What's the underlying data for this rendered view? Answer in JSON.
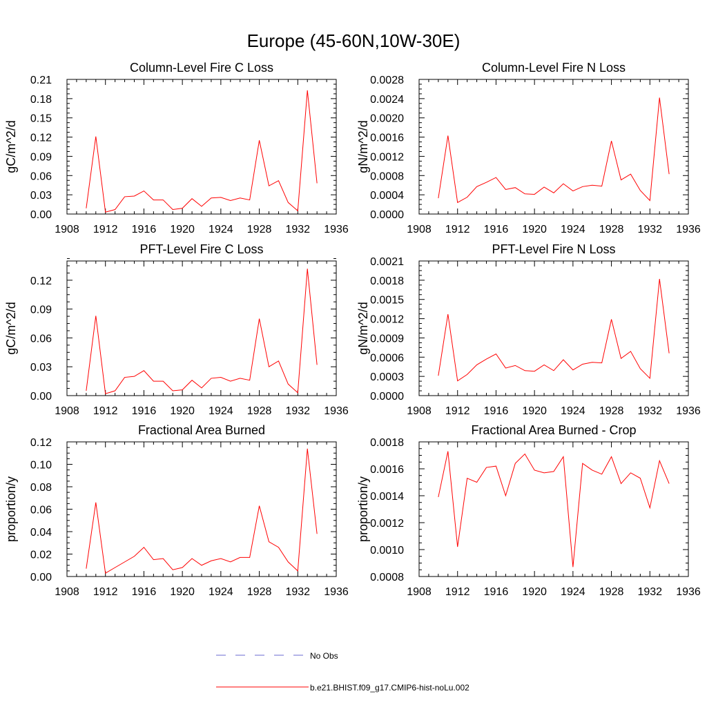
{
  "figure": {
    "title": "Europe (45-60N,10W-30E)"
  },
  "legend": {
    "obs_label": "No Obs",
    "model_label": "b.e21.BHIST.f09_g17.CMIP6-hist-noLu.002",
    "obs_color": "#6a6ad0",
    "model_color": "#ff0000"
  },
  "chart_data": [
    {
      "type": "line",
      "title": "Column-Level Fire C Loss",
      "ylabel": "gC/m^2/d",
      "xlim": [
        1908,
        1936
      ],
      "ylim": [
        0,
        0.21
      ],
      "xticks": [
        "1908",
        "1912",
        "1916",
        "1920",
        "1924",
        "1928",
        "1932",
        "1936"
      ],
      "yticks": [
        "0.00",
        "0.03",
        "0.06",
        "0.09",
        "0.12",
        "0.15",
        "0.18",
        "0.21"
      ],
      "x": [
        1910,
        1911,
        1912,
        1913,
        1914,
        1915,
        1916,
        1917,
        1918,
        1919,
        1920,
        1921,
        1922,
        1923,
        1924,
        1925,
        1926,
        1927,
        1928,
        1929,
        1930,
        1931,
        1932,
        1933,
        1934
      ],
      "series": [
        {
          "values": [
            0.009,
            0.121,
            0.003,
            0.007,
            0.027,
            0.028,
            0.036,
            0.022,
            0.022,
            0.007,
            0.009,
            0.024,
            0.012,
            0.025,
            0.026,
            0.021,
            0.025,
            0.022,
            0.115,
            0.044,
            0.052,
            0.018,
            0.005,
            0.193,
            0.048
          ]
        }
      ]
    },
    {
      "type": "line",
      "title": "Column-Level Fire N Loss",
      "ylabel": "gN/m^2/d",
      "xlim": [
        1908,
        1936
      ],
      "ylim": [
        0,
        0.0028
      ],
      "xticks": [
        "1908",
        "1912",
        "1916",
        "1920",
        "1924",
        "1928",
        "1932",
        "1936"
      ],
      "yticks": [
        "0.0000",
        "0.0004",
        "0.0008",
        "0.0012",
        "0.0016",
        "0.0020",
        "0.0024",
        "0.0028"
      ],
      "x": [
        1910,
        1911,
        1912,
        1913,
        1914,
        1915,
        1916,
        1917,
        1918,
        1919,
        1920,
        1921,
        1922,
        1923,
        1924,
        1925,
        1926,
        1927,
        1928,
        1929,
        1930,
        1931,
        1932,
        1933,
        1934
      ],
      "series": [
        {
          "values": [
            0.00033,
            0.00163,
            0.00024,
            0.00035,
            0.00057,
            0.00066,
            0.00076,
            0.00051,
            0.00055,
            0.00042,
            0.00041,
            0.00056,
            0.00044,
            0.00063,
            0.00048,
            0.00057,
            0.0006,
            0.00058,
            0.00152,
            0.00071,
            0.00083,
            0.00049,
            0.00028,
            0.00242,
            0.00083
          ]
        }
      ]
    },
    {
      "type": "line",
      "title": "PFT-Level Fire C Loss",
      "ylabel": "gC/m^2/d",
      "xlim": [
        1908,
        1936
      ],
      "ylim": [
        0,
        0.14
      ],
      "xticks": [
        "1908",
        "1912",
        "1916",
        "1920",
        "1924",
        "1928",
        "1932",
        "1936"
      ],
      "yticks": [
        "0.00",
        "0.03",
        "0.06",
        "0.09",
        "0.12"
      ],
      "x": [
        1910,
        1911,
        1912,
        1913,
        1914,
        1915,
        1916,
        1917,
        1918,
        1919,
        1920,
        1921,
        1922,
        1923,
        1924,
        1925,
        1926,
        1927,
        1928,
        1929,
        1930,
        1931,
        1932,
        1933,
        1934
      ],
      "series": [
        {
          "values": [
            0.005,
            0.083,
            0.002,
            0.005,
            0.019,
            0.02,
            0.026,
            0.015,
            0.015,
            0.005,
            0.006,
            0.016,
            0.008,
            0.018,
            0.019,
            0.015,
            0.018,
            0.016,
            0.08,
            0.03,
            0.036,
            0.012,
            0.003,
            0.132,
            0.032
          ]
        }
      ]
    },
    {
      "type": "line",
      "title": "PFT-Level Fire N Loss",
      "ylabel": "gN/m^2/d",
      "xlim": [
        1908,
        1936
      ],
      "ylim": [
        0,
        0.0021
      ],
      "xticks": [
        "1908",
        "1912",
        "1916",
        "1920",
        "1924",
        "1928",
        "1932",
        "1936"
      ],
      "yticks": [
        "0.0000",
        "0.0003",
        "0.0006",
        "0.0009",
        "0.0012",
        "0.0015",
        "0.0018",
        "0.0021"
      ],
      "x": [
        1910,
        1911,
        1912,
        1913,
        1914,
        1915,
        1916,
        1917,
        1918,
        1919,
        1920,
        1921,
        1922,
        1923,
        1924,
        1925,
        1926,
        1927,
        1928,
        1929,
        1930,
        1931,
        1932,
        1933,
        1934
      ],
      "series": [
        {
          "values": [
            0.00031,
            0.00127,
            0.00023,
            0.00033,
            0.00048,
            0.00057,
            0.00065,
            0.00043,
            0.00047,
            0.00039,
            0.00038,
            0.00048,
            0.00039,
            0.00056,
            0.0004,
            0.00049,
            0.00052,
            0.00051,
            0.00119,
            0.00058,
            0.00069,
            0.00042,
            0.00027,
            0.00182,
            0.00066
          ]
        }
      ]
    },
    {
      "type": "line",
      "title": "Fractional Area Burned",
      "ylabel": "proportion/y",
      "xlim": [
        1908,
        1936
      ],
      "ylim": [
        0,
        0.12
      ],
      "xticks": [
        "1908",
        "1912",
        "1916",
        "1920",
        "1924",
        "1928",
        "1932",
        "1936"
      ],
      "yticks": [
        "0.00",
        "0.02",
        "0.04",
        "0.06",
        "0.08",
        "0.10",
        "0.12"
      ],
      "x": [
        1910,
        1911,
        1912,
        1913,
        1914,
        1915,
        1916,
        1917,
        1918,
        1919,
        1920,
        1921,
        1922,
        1923,
        1924,
        1925,
        1926,
        1927,
        1928,
        1929,
        1930,
        1931,
        1932,
        1933,
        1934
      ],
      "series": [
        {
          "values": [
            0.007,
            0.066,
            0.003,
            0.008,
            0.013,
            0.018,
            0.026,
            0.015,
            0.016,
            0.006,
            0.008,
            0.016,
            0.01,
            0.014,
            0.016,
            0.013,
            0.017,
            0.017,
            0.063,
            0.031,
            0.026,
            0.013,
            0.005,
            0.114,
            0.038
          ]
        }
      ]
    },
    {
      "type": "line",
      "title": "Fractional Area Burned - Crop",
      "ylabel": "proportion/y",
      "xlim": [
        1908,
        1936
      ],
      "ylim": [
        0.0008,
        0.0018
      ],
      "xticks": [
        "1908",
        "1912",
        "1916",
        "1920",
        "1924",
        "1928",
        "1932",
        "1936"
      ],
      "yticks": [
        "0.0008",
        "0.0010",
        "0.0012",
        "0.0014",
        "0.0016",
        "0.0018"
      ],
      "x": [
        1910,
        1911,
        1912,
        1913,
        1914,
        1915,
        1916,
        1917,
        1918,
        1919,
        1920,
        1921,
        1922,
        1923,
        1924,
        1925,
        1926,
        1927,
        1928,
        1929,
        1930,
        1931,
        1932,
        1933,
        1934
      ],
      "series": [
        {
          "values": [
            0.00139,
            0.00173,
            0.00102,
            0.00153,
            0.0015,
            0.00161,
            0.00162,
            0.0014,
            0.00164,
            0.00171,
            0.00159,
            0.00157,
            0.00158,
            0.00169,
            0.00087,
            0.00164,
            0.00159,
            0.00156,
            0.00169,
            0.00149,
            0.00157,
            0.00153,
            0.00131,
            0.00166,
            0.00149
          ]
        }
      ]
    }
  ]
}
